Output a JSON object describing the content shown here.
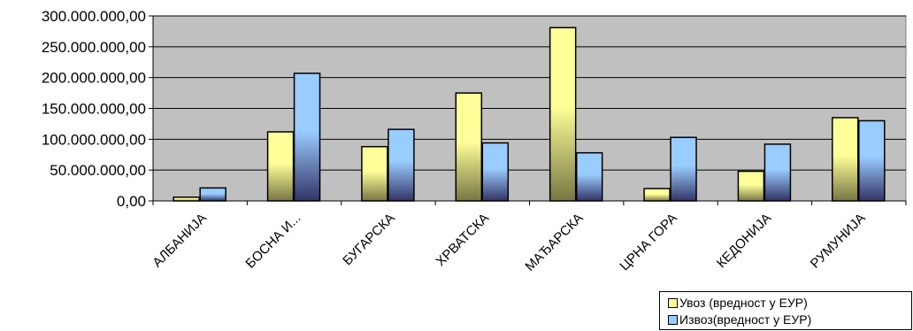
{
  "chart_data": {
    "type": "bar",
    "categories": [
      "АЛБАНИЈА",
      "БОСНА И...",
      "БУГАРСКА",
      "ХРВАТСКА",
      "МАЂАРСКА",
      "ЦРНА ГОРА",
      "КЕДОНИЈА",
      "РУМУНИЈА"
    ],
    "series": [
      {
        "name": "Увоз (вредност у ЕУР)",
        "values": [
          6000000,
          112000000,
          88000000,
          175000000,
          281000000,
          20000000,
          48000000,
          135000000
        ],
        "color": "#ffff99",
        "dark_color": "#777744"
      },
      {
        "name": "Извоз(вредност у ЕУР)",
        "values": [
          21000000,
          207000000,
          116000000,
          94000000,
          78000000,
          103000000,
          92000000,
          130000000
        ],
        "color": "#99ccff",
        "dark_color": "#333366"
      }
    ],
    "y_ticks": [
      "0,00",
      "50.000.000,00",
      "100.000.000,00",
      "150.000.000,00",
      "200.000.000,00",
      "250.000.000,00",
      "300.000.000,00"
    ],
    "ylim": [
      0,
      300000000
    ],
    "grid": true,
    "legend_position": "bottom-right",
    "plot_background": "#c0c0c0"
  }
}
